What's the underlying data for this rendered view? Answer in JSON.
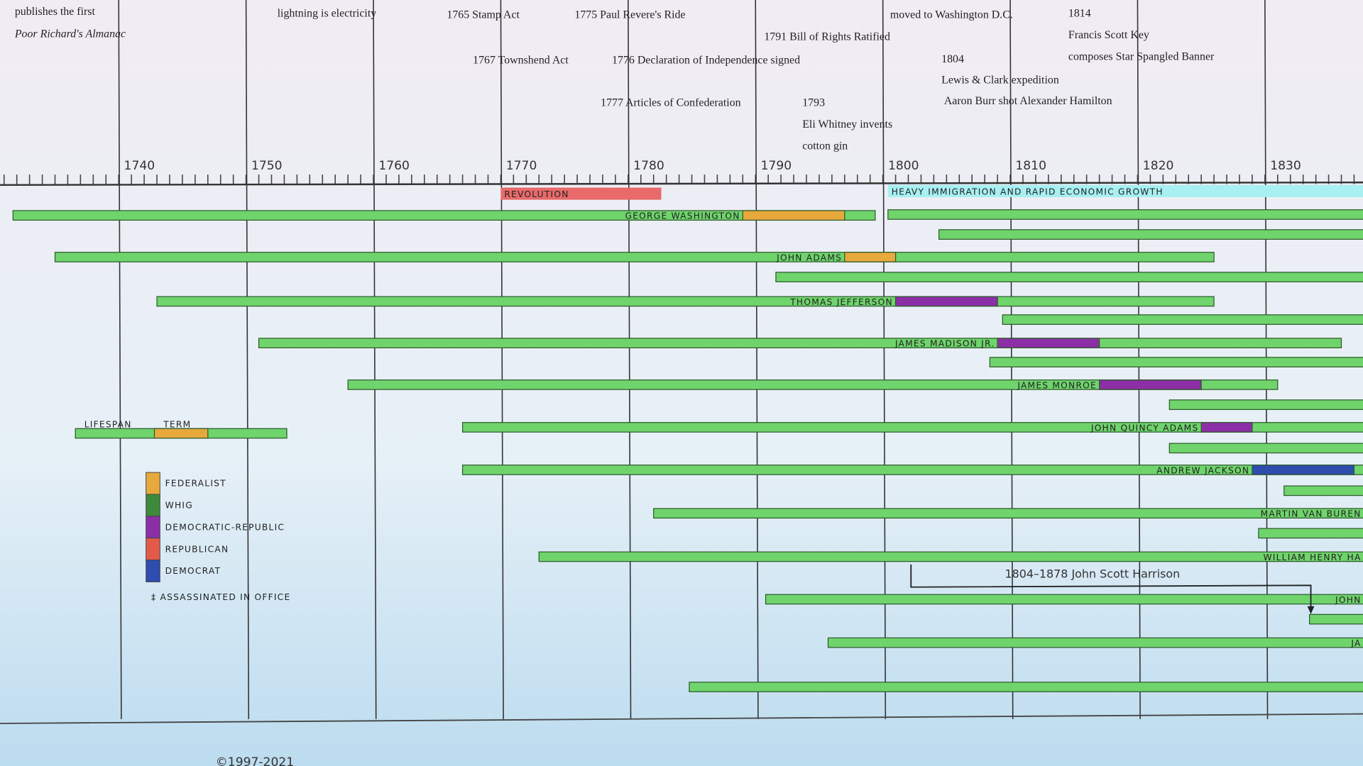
{
  "chart_data": {
    "type": "timeline",
    "xlim": [
      1730.68,
      1837.7
    ],
    "xticks": [
      1740,
      1750,
      1760,
      1770,
      1780,
      1790,
      1800,
      1810,
      1820,
      1830
    ],
    "xminor": 1,
    "grid": true,
    "parties": [
      {
        "name": "Federalist",
        "color": "#e8a93c"
      },
      {
        "name": "Whig",
        "color": "#3f8a3a"
      },
      {
        "name": "Democratic-Republic",
        "color": "#8c2fa6"
      },
      {
        "name": "Republican",
        "color": "#e45a4a"
      },
      {
        "name": "Democrat",
        "color": "#2f4caf"
      }
    ],
    "lifespan_color": "#6fd46c",
    "legend": {
      "lifespan": "Lifespan",
      "term": "Term",
      "sample": {
        "born": 1736.6,
        "died": 1753.2,
        "term": [
          1742.8,
          1747
        ],
        "party": "Federalist"
      },
      "note": "‡ Assassinated in office"
    },
    "bands": [
      {
        "label": "Revolution",
        "start": 1770,
        "end": 1782.6,
        "color": "#e86a6a"
      },
      {
        "label": "Heavy Immigration and Rapid Economic Growth",
        "start": 1800.4,
        "end": null,
        "color": "#a8f0f2"
      }
    ],
    "people": [
      {
        "name": "George Washington",
        "born": 1731.7,
        "died": 1799.4,
        "term": [
          1789,
          1797
        ],
        "party": "Federalist"
      },
      {
        "name": null,
        "born": 1800.4,
        "died": null
      },
      {
        "name": null,
        "born": 1804.4,
        "died": null
      },
      {
        "name": "John Adams",
        "born": 1735,
        "died": 1826,
        "term": [
          1797,
          1801
        ],
        "party": "Federalist"
      },
      {
        "name": null,
        "born": 1791.6,
        "died": null
      },
      {
        "name": "Thomas Jefferson",
        "born": 1743,
        "died": 1826,
        "term": [
          1801,
          1809
        ],
        "party": "Democratic-Republic"
      },
      {
        "name": null,
        "born": 1809.4,
        "died": null
      },
      {
        "name": "James Madison Jr.",
        "born": 1751,
        "died": 1836,
        "term": [
          1809,
          1817
        ],
        "party": "Democratic-Republic"
      },
      {
        "name": null,
        "born": 1808.4,
        "died": null
      },
      {
        "name": "James Monroe",
        "born": 1758,
        "died": 1831,
        "term": [
          1817,
          1825
        ],
        "party": "Democratic-Republic"
      },
      {
        "name": null,
        "born": 1822.5,
        "died": null
      },
      {
        "name": "John Quincy Adams",
        "born": 1767,
        "died": null,
        "term": [
          1825,
          1829
        ],
        "party": "Democratic-Republic"
      },
      {
        "name": null,
        "born": 1822.5,
        "died": null
      },
      {
        "name": "Andrew Jackson",
        "born": 1767,
        "died": null,
        "term": [
          1829,
          1837
        ],
        "party": "Democrat"
      },
      {
        "name": null,
        "born": 1831.5,
        "died": null
      },
      {
        "name": "Martin Van Buren",
        "born": 1782,
        "died": null
      },
      {
        "name": null,
        "born": 1829.5,
        "died": null
      },
      {
        "name": "William Henry Ha",
        "born": 1773,
        "died": null
      },
      {
        "name": "John",
        "born": 1790.8,
        "died": null
      },
      {
        "name": null,
        "born": 1833.5,
        "died": null
      },
      {
        "name": "Ja",
        "born": 1795.7,
        "died": null
      },
      {
        "name": null,
        "born": 1784.8,
        "died": null
      }
    ],
    "annotations": [
      "publishes the first",
      "Poor Richard's Almanac",
      "lightning is electricity",
      "1765  Stamp Act",
      "1775  Paul Revere's Ride",
      "1767  Townshend Act",
      "1776  Declaration of Independence signed",
      "1777  Articles of Confederation",
      "1791  Bill of Rights Ratified",
      "1793",
      "Eli Whitney invents",
      "cotton gin",
      "moved to Washington D.C.",
      "1804",
      "Lewis & Clark expedition",
      "Aaron Burr shot Alexander Hamilton",
      "1814",
      "Francis Scott Key",
      "composes Star Spangled Banner",
      "1804–1878 John Scott Harrison"
    ],
    "footer": "©1997-2021"
  }
}
